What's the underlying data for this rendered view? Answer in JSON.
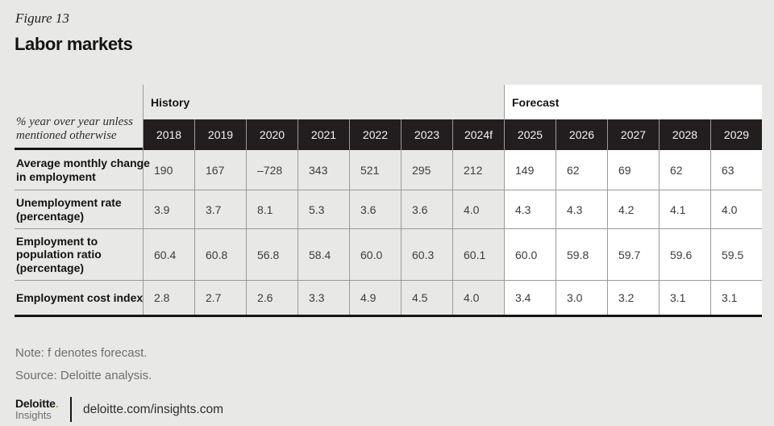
{
  "figure": {
    "label": "Figure 13",
    "title": "Labor markets"
  },
  "table": {
    "corner_note": "% year over year unless mentioned otherwise",
    "corner_note_lines": [
      "% year over year unless",
      "mentioned otherwise"
    ],
    "sections": [
      {
        "label": "History",
        "col_span": 7
      },
      {
        "label": "Forecast",
        "col_span": 5
      }
    ],
    "history_count": 7,
    "years": [
      "2018",
      "2019",
      "2020",
      "2021",
      "2022",
      "2023",
      "2024f",
      "2025",
      "2026",
      "2027",
      "2028",
      "2029"
    ],
    "rows": [
      {
        "label": "Average monthly change in employment",
        "label_lines": [
          "Average monthly change",
          "in employment"
        ],
        "values": [
          "190",
          "167",
          "–728",
          "343",
          "521",
          "295",
          "212",
          "149",
          "62",
          "69",
          "62",
          "63"
        ]
      },
      {
        "label": "Unemployment rate (percentage)",
        "label_lines": [
          "Unemployment rate",
          "(percentage)"
        ],
        "values": [
          "3.9",
          "3.7",
          "8.1",
          "5.3",
          "3.6",
          "3.6",
          "4.0",
          "4.3",
          "4.3",
          "4.2",
          "4.1",
          "4.0"
        ]
      },
      {
        "label": "Employment to population ratio (percentage)",
        "label_lines": [
          "Employment to",
          "population ratio",
          "(percentage)"
        ],
        "values": [
          "60.4",
          "60.8",
          "56.8",
          "58.4",
          "60.0",
          "60.3",
          "60.1",
          "60.0",
          "59.8",
          "59.7",
          "59.6",
          "59.5"
        ]
      },
      {
        "label": "Employment cost index",
        "label_lines": [
          "Employment cost index"
        ],
        "values": [
          "2.8",
          "2.7",
          "2.6",
          "3.3",
          "4.9",
          "4.5",
          "4.0",
          "3.4",
          "3.0",
          "3.2",
          "3.1",
          "3.1"
        ]
      }
    ]
  },
  "chart_data": {
    "type": "table",
    "title": "Labor markets",
    "figure_label": "Figure 13",
    "unit_note": "% year over year unless mentioned otherwise",
    "column_groups": [
      {
        "label": "History",
        "columns": [
          "2018",
          "2019",
          "2020",
          "2021",
          "2022",
          "2023",
          "2024f"
        ]
      },
      {
        "label": "Forecast",
        "columns": [
          "2025",
          "2026",
          "2027",
          "2028",
          "2029"
        ]
      }
    ],
    "categories": [
      "2018",
      "2019",
      "2020",
      "2021",
      "2022",
      "2023",
      "2024f",
      "2025",
      "2026",
      "2027",
      "2028",
      "2029"
    ],
    "series": [
      {
        "name": "Average monthly change in employment",
        "values": [
          190,
          167,
          -728,
          343,
          521,
          295,
          212,
          149,
          62,
          69,
          62,
          63
        ]
      },
      {
        "name": "Unemployment rate (percentage)",
        "values": [
          3.9,
          3.7,
          8.1,
          5.3,
          3.6,
          3.6,
          4.0,
          4.3,
          4.3,
          4.2,
          4.1,
          4.0
        ]
      },
      {
        "name": "Employment to population ratio (percentage)",
        "values": [
          60.4,
          60.8,
          56.8,
          58.4,
          60.0,
          60.3,
          60.1,
          60.0,
          59.8,
          59.7,
          59.6,
          59.5
        ]
      },
      {
        "name": "Employment cost index",
        "values": [
          2.8,
          2.7,
          2.6,
          3.3,
          4.9,
          4.5,
          4.0,
          3.4,
          3.0,
          3.2,
          3.1,
          3.1
        ]
      }
    ],
    "notes": [
      "Note: f denotes forecast.",
      "Source: Deloitte analysis."
    ]
  },
  "notes": {
    "note": "Note: f denotes forecast.",
    "source": "Source: Deloitte analysis."
  },
  "footer": {
    "brand": "Deloitte",
    "brand_dot": ".",
    "brand_sub": "Insights",
    "url": "deloitte.com/insights.com"
  },
  "colors": {
    "page_bg": "#e8e9e6",
    "year_header_bg": "#221e1f",
    "year_header_text": "#f3f3f1",
    "forecast_bg": "#ffffff",
    "grid_line": "#9a9a98",
    "thick_rule": "#161414",
    "note_text": "#6f6f6d",
    "deloitte_green": "#86bc25"
  }
}
